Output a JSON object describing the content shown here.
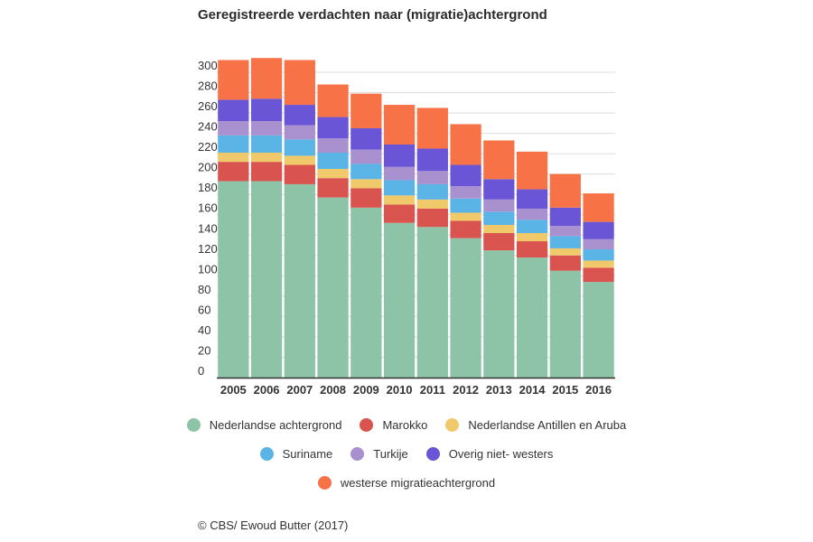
{
  "chart_data": {
    "type": "bar",
    "stacked": true,
    "title": "Geregistreerde verdachten naar (migratie)achtergrond",
    "xlabel": "",
    "ylabel": "",
    "ylim": [
      0,
      310
    ],
    "yticks": [
      0,
      20,
      40,
      60,
      80,
      100,
      120,
      140,
      160,
      180,
      200,
      220,
      240,
      260,
      280,
      300
    ],
    "grid": true,
    "legend_position": "bottom",
    "categories": [
      "2005",
      "2006",
      "2007",
      "2008",
      "2009",
      "2010",
      "2011",
      "2012",
      "2013",
      "2014",
      "2015",
      "2016"
    ],
    "series": [
      {
        "name": "Nederlandse achtergrond",
        "color": "#8dc3a6",
        "values": [
          193,
          193,
          190,
          177,
          167,
          152,
          148,
          137,
          125,
          118,
          105,
          94
        ]
      },
      {
        "name": "Marokko",
        "color": "#d9534f",
        "values": [
          19,
          19,
          19,
          19,
          19,
          18,
          18,
          17,
          17,
          16,
          15,
          14
        ]
      },
      {
        "name": "Nederlandse Antillen en Aruba",
        "color": "#f0c96b",
        "values": [
          9,
          9,
          9,
          9,
          9,
          9,
          9,
          8,
          8,
          8,
          7,
          7
        ]
      },
      {
        "name": "Suriname",
        "color": "#5ab4e5",
        "values": [
          17,
          17,
          16,
          16,
          15,
          15,
          15,
          14,
          13,
          13,
          12,
          11
        ]
      },
      {
        "name": "Turkije",
        "color": "#a991cf",
        "values": [
          14,
          14,
          14,
          14,
          14,
          13,
          13,
          12,
          12,
          11,
          10,
          10
        ]
      },
      {
        "name": "Overig niet- westers",
        "color": "#6a55d6",
        "values": [
          21,
          22,
          20,
          21,
          21,
          22,
          22,
          21,
          20,
          19,
          18,
          17
        ]
      },
      {
        "name": "westerse migratieachtergrond",
        "color": "#f77347",
        "values": [
          39,
          40,
          44,
          32,
          34,
          39,
          40,
          40,
          38,
          37,
          33,
          28
        ]
      }
    ]
  },
  "credit": "© CBS/ Ewoud Butter (2017)"
}
